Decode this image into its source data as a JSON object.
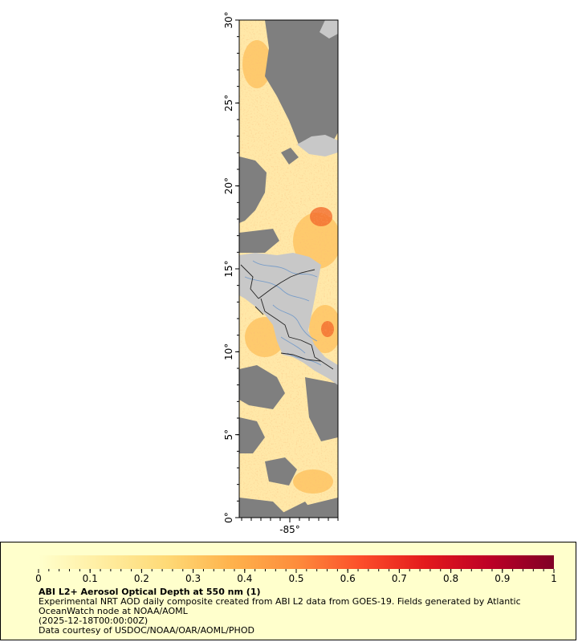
{
  "map": {
    "lat_ticks": [
      "0°",
      "5°",
      "10°",
      "15°",
      "20°",
      "25°",
      "30°"
    ],
    "lon_ticks": [
      "-85°"
    ],
    "colors": {
      "land": "#c8c8c8",
      "cloud_mask": "#7f7f7f",
      "aod_low": "#ffe8a8",
      "aod_mid": "#fec05a",
      "aod_high": "#f36a2c",
      "borders": "#222222",
      "rivers": "#7a9ec8"
    }
  },
  "legend": {
    "tick_labels": [
      "0",
      "0.1",
      "0.2",
      "0.3",
      "0.4",
      "0.5",
      "0.6",
      "0.7",
      "0.8",
      "0.9",
      "1"
    ],
    "colorbar_colors": [
      "#ffffcc",
      "#ffeda0",
      "#fed976",
      "#feb24c",
      "#fd8d3c",
      "#fc4e2a",
      "#e31a1c",
      "#bd0026",
      "#800026"
    ],
    "title": "ABI L2+ Aerosol Optical Depth at 550 nm (1)",
    "description": "Experimental NRT AOD daily composite created from ABI L2 data from GOES-19. Fields generated by Atlantic OceanWatch node at NOAA/AOML",
    "time": "(2025-12-18T00:00:00Z)",
    "credit": "Data courtesy of USDOC/NOAA/OAR/AOML/PHOD"
  }
}
